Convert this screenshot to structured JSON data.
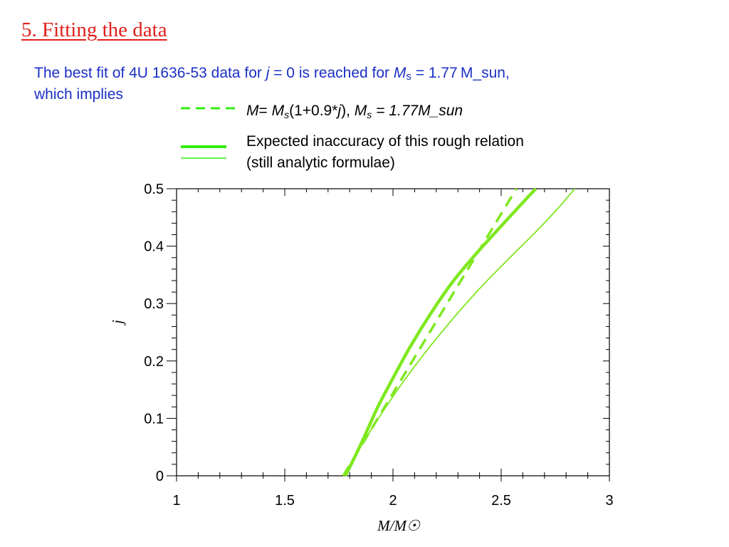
{
  "slide": {
    "title": "5. Fitting the data",
    "intro": {
      "part1": "The best fit of 4U 1636-53 data for ",
      "j_symbol": "j",
      "part2": " = 0 is reached for ",
      "m_symbol": "M",
      "m_sub": "s",
      "part3": " = 1.77 M_sun,",
      "line2": "which implies"
    },
    "legend": {
      "dashed": {
        "m": "M",
        "eq": "= ",
        "ms": "M",
        "ms_sub": "s",
        "expr_a": "(1+0.9*",
        "j": "j",
        "expr_b": "),  ",
        "ms2": "M",
        "ms2_sub": "s",
        "tail": " = 1.77M_sun"
      },
      "band": {
        "line1": "Expected inaccuracy of this rough  relation",
        "line2": "(still analytic formulae)"
      }
    },
    "colors": {
      "title": "#e0201b",
      "intro_text": "#1b2fc4",
      "curve": "#7ee81e",
      "legend_line": "#33ee12"
    }
  },
  "chart_data": {
    "type": "line",
    "xlabel": "M/M☉",
    "ylabel": "j",
    "xlim": [
      1,
      3
    ],
    "ylim": [
      0,
      0.5
    ],
    "xticks": [
      "1",
      "1.5",
      "2",
      "2.5",
      "3"
    ],
    "yticks": [
      "0",
      "0.1",
      "0.2",
      "0.3",
      "0.4",
      "0.5"
    ],
    "grid": false,
    "series": [
      {
        "name": "M= Ms(1+0.9*j),  Ms = 1.77M_sun",
        "style": "dashed",
        "x": [
          1.77,
          1.85,
          1.93,
          2.01,
          2.09,
          2.17,
          2.25,
          2.33,
          2.41,
          2.49,
          2.57
        ],
        "y": [
          0.0,
          0.05,
          0.1,
          0.15,
          0.2,
          0.25,
          0.3,
          0.35,
          0.4,
          0.45,
          0.5
        ]
      },
      {
        "name": "",
        "style": "thick",
        "x": [
          1.78,
          1.82,
          1.87,
          1.93,
          2.0,
          2.08,
          2.17,
          2.27,
          2.38,
          2.5,
          2.61,
          2.66
        ],
        "y": [
          0.0,
          0.03,
          0.07,
          0.12,
          0.17,
          0.225,
          0.28,
          0.335,
          0.385,
          0.435,
          0.48,
          0.5
        ]
      },
      {
        "name": "",
        "style": "thin",
        "x": [
          1.78,
          1.85,
          1.95,
          2.05,
          2.16,
          2.28,
          2.41,
          2.54,
          2.66,
          2.76,
          2.84
        ],
        "y": [
          0.0,
          0.05,
          0.11,
          0.165,
          0.22,
          0.275,
          0.33,
          0.38,
          0.425,
          0.465,
          0.5
        ]
      }
    ]
  }
}
